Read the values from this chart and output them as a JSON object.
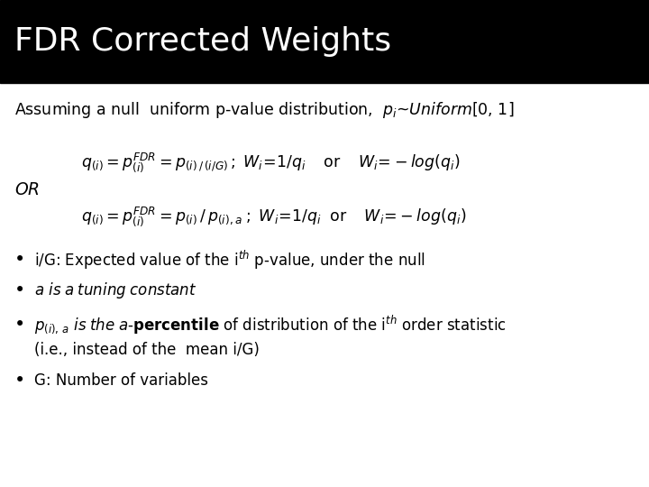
{
  "title": "FDR Corrected Weights",
  "title_bg": "#000000",
  "title_color": "#ffffff",
  "title_fontsize": 26,
  "bg_color": "#ffffff",
  "text_color": "#000000",
  "fig_width": 7.2,
  "fig_height": 5.4
}
